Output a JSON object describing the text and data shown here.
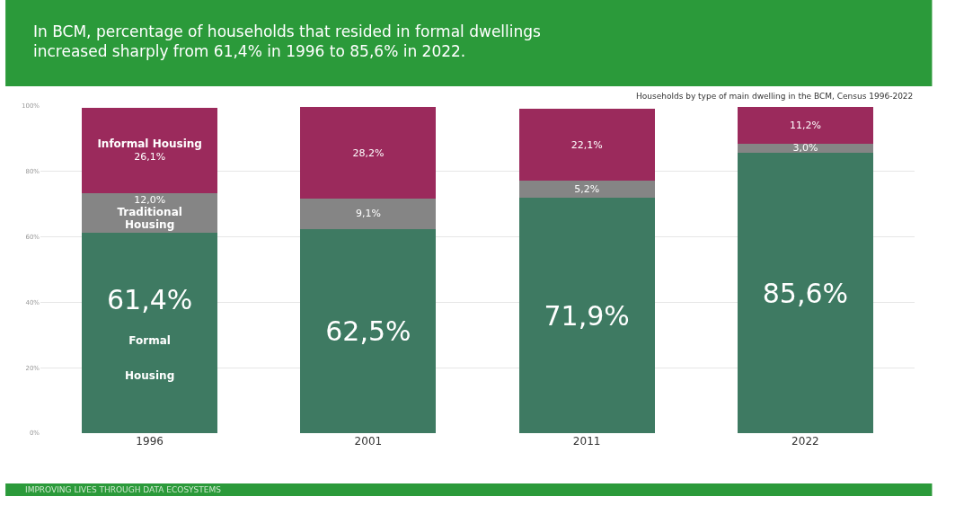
{
  "chart_data": {
    "type": "bar",
    "stacked": true,
    "title": "In BCM, percentage of households that resided in formal dwellings increased sharply from 61,4% in 1996 to 85,6% in 2022.",
    "subtitle": "Households by type of main dwelling in the BCM, Census 1996-2022",
    "annotations": [
      "IMPROVING LIVES THROUGH DATA ECOSYSTEMS"
    ],
    "categories": [
      "1996",
      "2001",
      "2011",
      "2022"
    ],
    "series": [
      {
        "name": "Formal Housing",
        "color": "#3e7a62",
        "values": [
          61.4,
          62.5,
          71.9,
          85.6
        ],
        "value_labels": [
          "61,4%",
          "62,5%",
          "71,9%",
          "85,6%"
        ]
      },
      {
        "name": "Traditional Housing",
        "color": "#858585",
        "values": [
          12.0,
          9.1,
          5.2,
          3.0
        ],
        "value_labels": [
          "12,0%",
          "9,1%",
          "5,2%",
          "3,0%"
        ]
      },
      {
        "name": "Informal Housing",
        "color": "#9b2a5c",
        "values": [
          26.1,
          28.2,
          22.1,
          11.2
        ],
        "value_labels": [
          "26,1%",
          "28,2%",
          "22,1%",
          "11,2%"
        ]
      }
    ],
    "ylim": [
      0,
      100
    ],
    "yticks": [
      {
        "value": 0,
        "label": "0%"
      },
      {
        "value": 20,
        "label": "20%"
      },
      {
        "value": 40,
        "label": "40%"
      },
      {
        "value": 60,
        "label": "60%"
      },
      {
        "value": 80,
        "label": "80%"
      },
      {
        "value": 100,
        "label": "100%"
      }
    ],
    "grid": "y",
    "legend": false
  }
}
